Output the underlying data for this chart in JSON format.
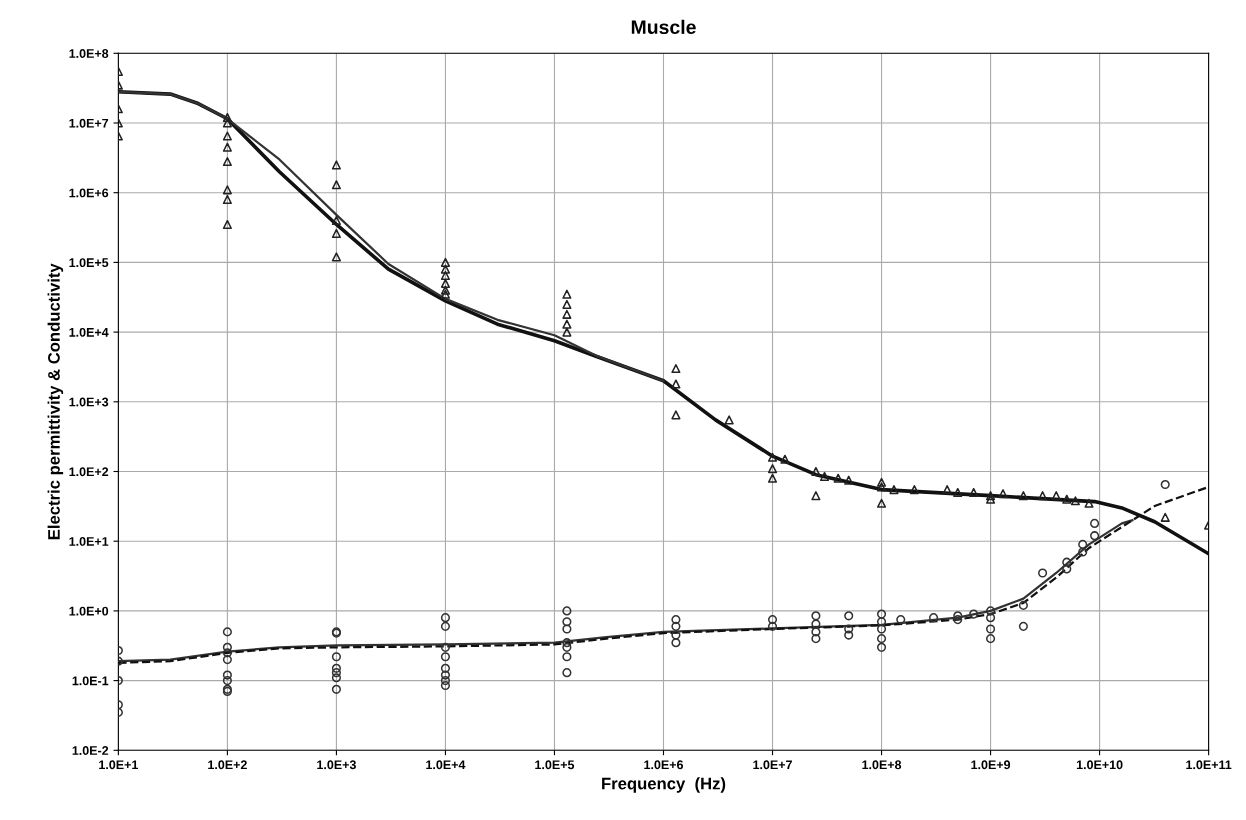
{
  "chart_data": {
    "type": "line",
    "title": "Muscle",
    "xlabel": "Frequency  (Hz)",
    "ylabel": "Electric permittivity & Conductivity",
    "log": "xy",
    "grid": true,
    "legend": false,
    "xlim": [
      10,
      100000000000
    ],
    "ylim": [
      0.01,
      100000000
    ],
    "xticks": [
      {
        "value": 10,
        "label": "1.0E+1"
      },
      {
        "value": 100,
        "label": "1.0E+2"
      },
      {
        "value": 1000,
        "label": "1.0E+3"
      },
      {
        "value": 10000,
        "label": "1.0E+4"
      },
      {
        "value": 100000,
        "label": "1.0E+5"
      },
      {
        "value": 1000000,
        "label": "1.0E+6"
      },
      {
        "value": 10000000,
        "label": "1.0E+7"
      },
      {
        "value": 100000000,
        "label": "1.0E+8"
      },
      {
        "value": 1000000000,
        "label": "1.0E+9"
      },
      {
        "value": 10000000000,
        "label": "1.0E+10"
      },
      {
        "value": 100000000000,
        "label": "1.0E+11"
      }
    ],
    "yticks": [
      {
        "value": 0.01,
        "label": "1.0E-2"
      },
      {
        "value": 0.1,
        "label": "1.0E-1"
      },
      {
        "value": 1,
        "label": "1.0E+0"
      },
      {
        "value": 10,
        "label": "1.0E+1"
      },
      {
        "value": 100,
        "label": "1.0E+2"
      },
      {
        "value": 1000,
        "label": "1.0E+3"
      },
      {
        "value": 10000,
        "label": "1.0E+4"
      },
      {
        "value": 100000,
        "label": "1.0E+5"
      },
      {
        "value": 1000000,
        "label": "1.0E+6"
      },
      {
        "value": 10000000,
        "label": "1.0E+7"
      },
      {
        "value": 100000000,
        "label": "1.0E+8"
      }
    ],
    "series": [
      {
        "color": "#111111",
        "line_style": "solid",
        "marker": "none",
        "x": [
          10,
          30,
          54,
          100,
          300,
          1000,
          3000,
          10000,
          30000,
          100000,
          240000,
          1000000,
          3000000,
          10000000,
          25000000,
          100000000,
          1000000000,
          9000000000,
          16000000000,
          32000000000,
          100000000000
        ],
        "values": [
          28000000,
          26000000,
          19000000,
          11500000,
          2000000,
          350000,
          80000,
          28000,
          13000,
          7500,
          4500,
          2000,
          550,
          166,
          90,
          55,
          45,
          37,
          30,
          19,
          6.6
        ]
      },
      {
        "color": "#333333",
        "line_style": "solid",
        "marker": "none",
        "x": [
          10,
          30,
          54,
          100,
          300,
          1000,
          3000,
          10000,
          30000,
          100000,
          240000,
          1000000
        ],
        "values": [
          28000000,
          26000000,
          19000000,
          11500000,
          3000000,
          480000,
          95000,
          30000,
          15000,
          9000,
          4600,
          2000
        ]
      },
      {
        "type": "scatter",
        "color": "#222222",
        "marker": "triangle",
        "x": [
          10,
          10,
          10,
          10,
          10,
          100,
          100,
          100,
          100,
          100,
          100,
          100,
          100,
          1000,
          1000,
          1000,
          1000,
          1000,
          10000,
          10000,
          10000,
          10000,
          10000,
          10000,
          130000,
          130000,
          130000,
          130000,
          130000,
          1300000,
          1300000,
          1300000,
          4000000,
          10000000,
          10000000,
          10000000,
          13000000,
          25000000,
          25000000,
          30000000,
          40000000,
          50000000,
          100000000,
          100000000,
          100000000,
          130000000,
          200000000,
          400000000,
          500000000,
          700000000,
          1000000000,
          1000000000,
          1300000000,
          2000000000,
          3000000000,
          4000000000,
          5000000000,
          6000000000,
          8000000000,
          40000000000,
          100000000000
        ],
        "values": [
          55000000,
          35000000,
          16000000,
          10000000,
          6500000,
          12000000,
          10000000,
          6500000,
          4500000,
          2800000,
          1100000,
          800000,
          350000,
          2500000,
          1300000,
          400000,
          260000,
          120000,
          100000,
          80000,
          65000,
          50000,
          40000,
          35000,
          35000,
          25000,
          18000,
          13000,
          10000,
          3000,
          1800,
          650,
          550,
          160,
          110,
          80,
          150,
          100,
          45,
          85,
          80,
          75,
          70,
          60,
          35,
          55,
          55,
          55,
          50,
          50,
          45,
          40,
          48,
          45,
          45,
          45,
          40,
          38,
          35,
          22,
          17
        ]
      },
      {
        "color": "#333333",
        "line_style": "solid",
        "marker": "none",
        "x": [
          10,
          30,
          100,
          300,
          1000,
          10000,
          100000,
          300000,
          1000000,
          10000000,
          100000000,
          500000000,
          1000000000,
          2000000000,
          4000000000,
          8000000000,
          16000000000,
          20000000000
        ],
        "values": [
          0.19,
          0.2,
          0.26,
          0.3,
          0.32,
          0.33,
          0.35,
          0.42,
          0.5,
          0.56,
          0.63,
          0.8,
          1.0,
          1.5,
          3.5,
          9,
          18,
          20
        ]
      },
      {
        "color": "#111111",
        "line_style": "dashed",
        "marker": "none",
        "x": [
          10,
          30,
          100,
          300,
          1000,
          10000,
          100000,
          300000,
          1000000,
          10000000,
          100000000,
          500000000,
          1000000000,
          2000000000,
          4000000000,
          8000000000,
          20000000000,
          32000000000,
          100000000000
        ],
        "values": [
          0.18,
          0.19,
          0.25,
          0.29,
          0.3,
          0.31,
          0.33,
          0.4,
          0.48,
          0.55,
          0.62,
          0.75,
          0.9,
          1.3,
          3,
          8,
          20,
          32,
          60
        ]
      },
      {
        "type": "scatter",
        "color": "#333333",
        "marker": "circle",
        "x": [
          10,
          10,
          10,
          10,
          10,
          100,
          100,
          100,
          100,
          100,
          100,
          100,
          100,
          1000,
          1000,
          1000,
          1000,
          1000,
          1000,
          1000,
          10000,
          10000,
          10000,
          10000,
          10000,
          10000,
          10000,
          10000,
          130000,
          130000,
          130000,
          130000,
          130000,
          130000,
          130000,
          1300000,
          1300000,
          1300000,
          1300000,
          10000000,
          10000000,
          25000000,
          25000000,
          25000000,
          25000000,
          50000000,
          50000000,
          50000000,
          100000000,
          100000000,
          100000000,
          100000000,
          100000000,
          150000000,
          300000000,
          500000000,
          500000000,
          700000000,
          1000000000,
          1000000000,
          1000000000,
          1000000000,
          2000000000,
          2000000000,
          3000000000,
          5000000000,
          5000000000,
          7000000000,
          7000000000,
          9000000000,
          9000000000,
          40000000000
        ],
        "values": [
          0.27,
          0.19,
          0.1,
          0.045,
          0.035,
          0.5,
          0.3,
          0.25,
          0.2,
          0.12,
          0.1,
          0.075,
          0.07,
          0.5,
          0.48,
          0.22,
          0.15,
          0.13,
          0.11,
          0.075,
          0.8,
          0.6,
          0.3,
          0.22,
          0.15,
          0.12,
          0.1,
          0.085,
          1.0,
          0.7,
          0.55,
          0.35,
          0.3,
          0.22,
          0.13,
          0.75,
          0.6,
          0.45,
          0.35,
          0.75,
          0.6,
          0.85,
          0.65,
          0.5,
          0.4,
          0.85,
          0.55,
          0.45,
          0.9,
          0.7,
          0.55,
          0.4,
          0.3,
          0.75,
          0.8,
          0.85,
          0.75,
          0.9,
          1.0,
          0.8,
          0.55,
          0.4,
          1.2,
          0.6,
          3.5,
          5,
          4,
          7,
          9,
          12,
          18,
          65
        ]
      }
    ]
  }
}
